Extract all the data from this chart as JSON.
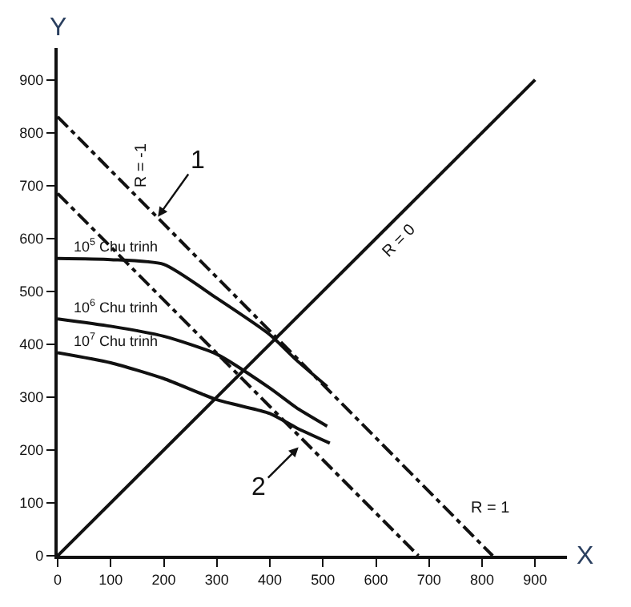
{
  "chart_data": {
    "type": "line",
    "xlabel": "X",
    "ylabel": "Y",
    "xlim": [
      0,
      960
    ],
    "ylim": [
      0,
      960
    ],
    "xticks": [
      0,
      100,
      200,
      300,
      400,
      500,
      600,
      700,
      800,
      900
    ],
    "yticks": [
      0,
      100,
      200,
      300,
      400,
      500,
      600,
      700,
      800,
      900
    ],
    "marker": "none",
    "series": [
      {
        "name": "10$^{5}$ Chu trinh",
        "color": "#111111",
        "line_style": "solid",
        "x": [
          0,
          100,
          200,
          300,
          400,
          450,
          508
        ],
        "values": [
          562,
          560,
          551,
          487,
          418,
          370,
          320
        ]
      },
      {
        "name": "10$^{6}$ Chu trinh",
        "color": "#111111",
        "line_style": "solid",
        "x": [
          0,
          100,
          200,
          300,
          400,
          450,
          508
        ],
        "values": [
          448,
          434,
          415,
          381,
          317,
          280,
          245
        ]
      },
      {
        "name": "10$^{7}$ Chu trinh",
        "color": "#111111",
        "line_style": "solid",
        "x": [
          0,
          100,
          200,
          300,
          400,
          450,
          513
        ],
        "values": [
          384,
          365,
          335,
          295,
          269,
          242,
          213
        ]
      },
      {
        "color": "#111111",
        "line_style": "solid",
        "x": [
          0,
          900
        ],
        "values": [
          0,
          900
        ]
      },
      {
        "color": "#111111",
        "line_style": "dashdot",
        "x": [
          0,
          820
        ],
        "values": [
          830,
          0
        ]
      },
      {
        "color": "#111111",
        "line_style": "dashdot",
        "x": [
          0,
          680
        ],
        "values": [
          685,
          0
        ]
      }
    ],
    "annotations": [
      "R = -1",
      "R = 0",
      "R = 1",
      {
        "text": "1",
        "x": 189,
        "y": 641
      },
      {
        "text": "2",
        "x": 454,
        "y": 205
      }
    ]
  }
}
